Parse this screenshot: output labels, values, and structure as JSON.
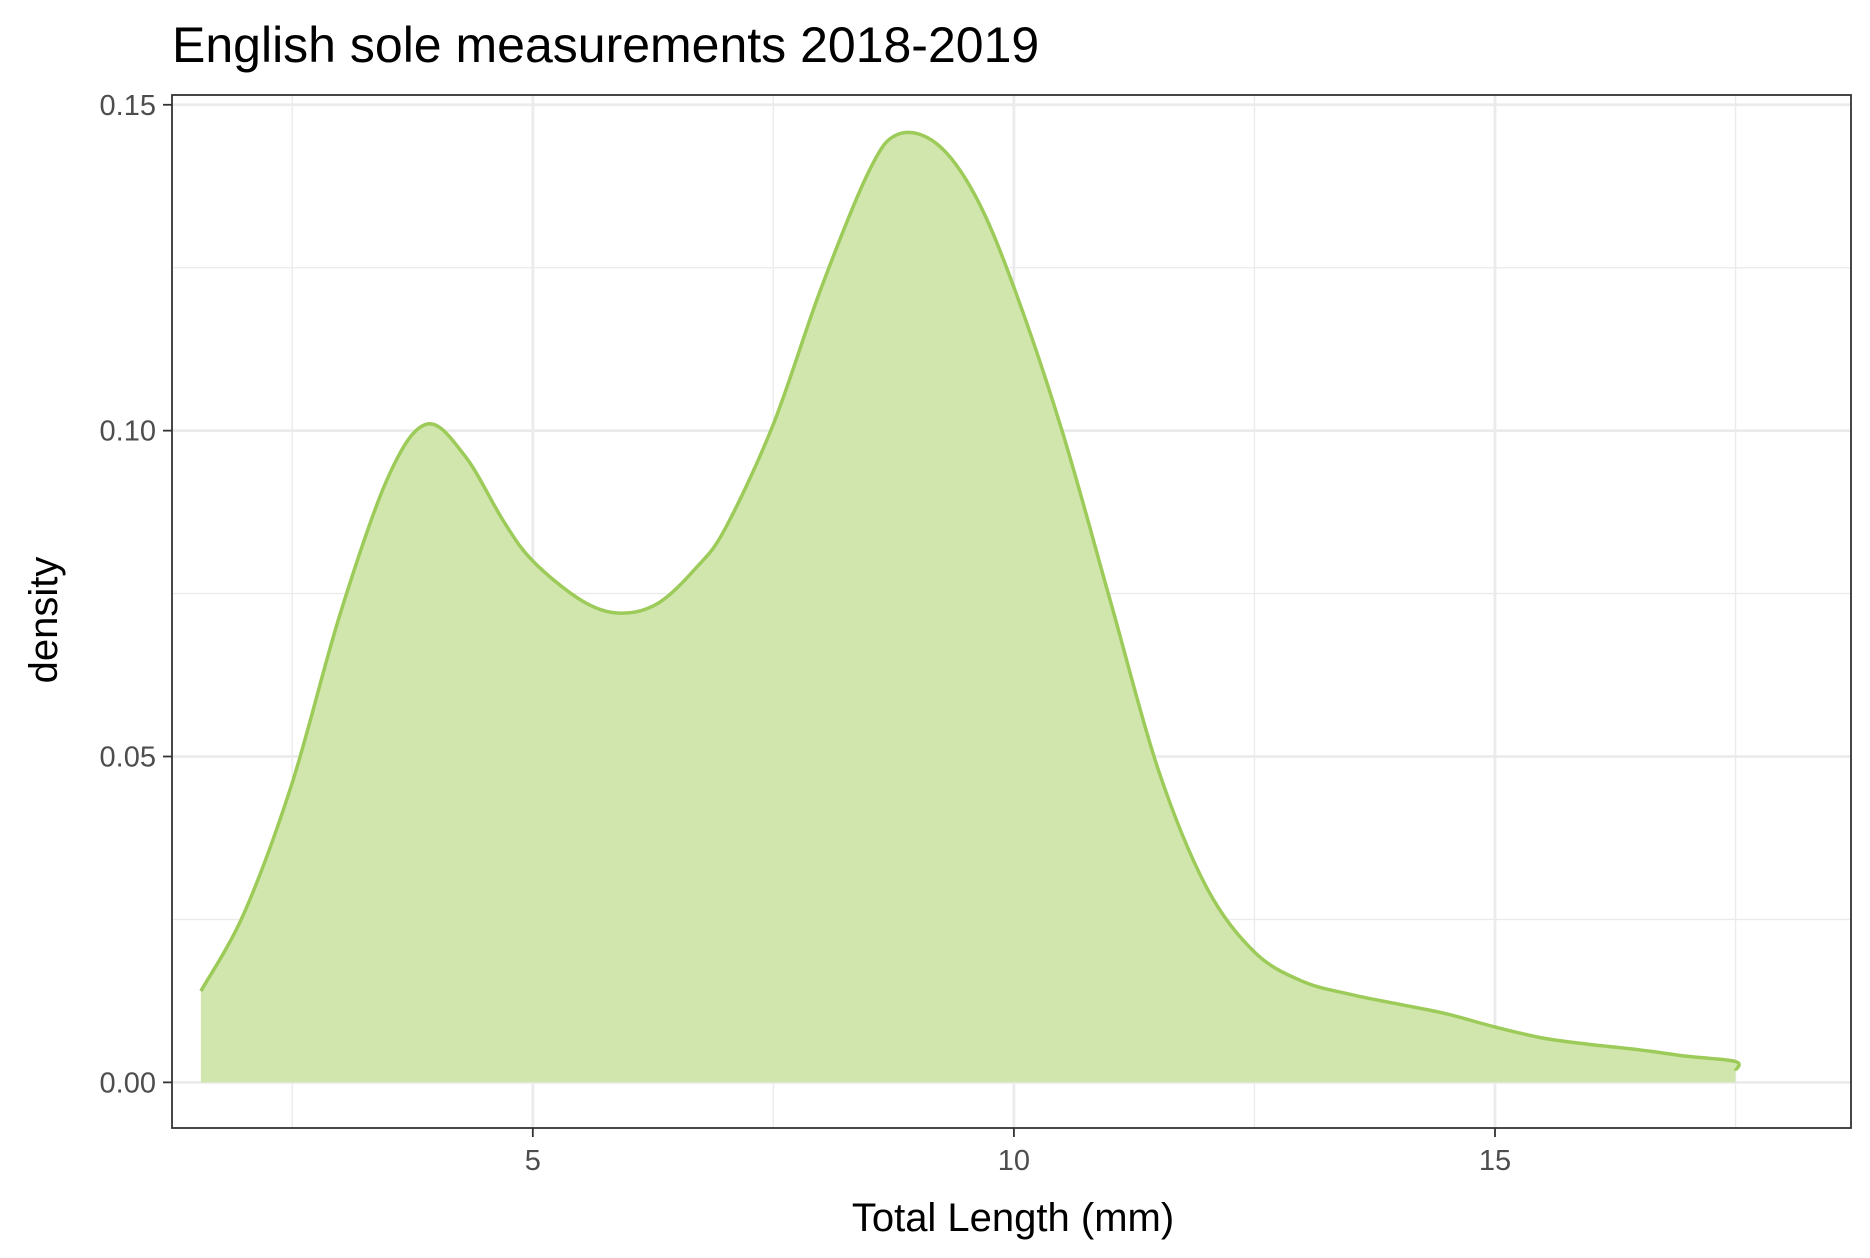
{
  "chart_data": {
    "type": "area",
    "title": "English sole measurements 2018-2019",
    "xlabel": "Total Length (mm)",
    "ylabel": "density",
    "xlim": [
      1.25,
      18.7
    ],
    "ylim": [
      -0.007,
      0.1515
    ],
    "xticks": [
      5,
      10,
      15
    ],
    "xtick_labels": [
      "5",
      "10",
      "15"
    ],
    "xminor": [
      2.5,
      7.5,
      12.5,
      17.5
    ],
    "yticks": [
      0.0,
      0.05,
      0.1,
      0.15
    ],
    "ytick_labels": [
      "0.00",
      "0.05",
      "0.10",
      "0.15"
    ],
    "yminor": [
      0.025,
      0.075,
      0.125
    ],
    "grid": true,
    "legend": "none",
    "colors": {
      "fill": "#d1e6ad",
      "line": "#9ccb59",
      "grid": "#ebebeb",
      "frame": "#333333"
    },
    "series": [
      {
        "x": [
          1.55,
          2.0,
          2.5,
          3.0,
          3.5,
          3.9,
          4.3,
          4.7,
          5.0,
          5.5,
          5.9,
          6.3,
          6.7,
          7.0,
          7.5,
          8.0,
          8.5,
          8.8,
          9.2,
          9.6,
          10.0,
          10.5,
          11.0,
          11.5,
          12.0,
          12.5,
          13.0,
          13.5,
          14.0,
          14.5,
          15.0,
          15.5,
          16.0,
          16.5,
          17.0,
          17.5,
          17.5
        ],
        "y": [
          0.014,
          0.026,
          0.046,
          0.072,
          0.093,
          0.101,
          0.096,
          0.086,
          0.08,
          0.074,
          0.072,
          0.0735,
          0.079,
          0.085,
          0.101,
          0.122,
          0.14,
          0.1455,
          0.144,
          0.136,
          0.122,
          0.1,
          0.074,
          0.048,
          0.03,
          0.02,
          0.0155,
          0.0135,
          0.012,
          0.0105,
          0.0085,
          0.0068,
          0.0058,
          0.005,
          0.004,
          0.0032,
          0.0018
        ]
      }
    ]
  }
}
